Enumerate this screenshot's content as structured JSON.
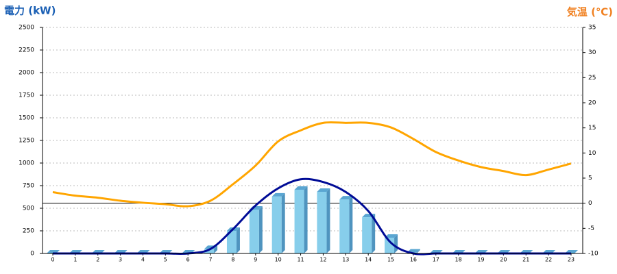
{
  "chart_data": {
    "type": "combo",
    "y_title": "電力 (kW)",
    "y2_title": "気温 (℃)",
    "categories": [
      "0",
      "1",
      "2",
      "3",
      "4",
      "5",
      "6",
      "7",
      "8",
      "9",
      "10",
      "11",
      "12",
      "13",
      "14",
      "15",
      "16",
      "17",
      "18",
      "19",
      "20",
      "21",
      "22",
      "23"
    ],
    "series": [
      {
        "type": "bar",
        "color": "#87ceeb",
        "values": [
          0,
          0,
          0,
          0,
          0,
          0,
          0,
          50,
          250,
          485,
          630,
          705,
          682,
          598,
          401,
          174,
          10,
          0,
          0,
          0,
          0,
          0,
          0,
          0
        ]
      },
      {
        "type": "line",
        "color": "#000b96",
        "values": [
          0,
          0,
          0,
          0,
          0,
          0,
          0,
          50,
          270,
          530,
          720,
          820,
          790,
          680,
          470,
          120,
          0,
          0,
          0,
          0,
          0,
          0,
          0,
          0
        ]
      },
      {
        "type": "line",
        "color": "#ffa500",
        "axis": "y2",
        "values": [
          2.2,
          1.5,
          1.1,
          0.5,
          0.1,
          -0.2,
          -0.6,
          0.5,
          3.8,
          7.5,
          12.3,
          14.5,
          16,
          16,
          16,
          15.1,
          12.8,
          10.2,
          8.5,
          7.2,
          6.4,
          5.6,
          6.7,
          7.9
        ]
      }
    ],
    "ylim": [
      0,
      2500
    ],
    "yticks": [
      0,
      250,
      500,
      750,
      1000,
      1250,
      1500,
      1750,
      2000,
      2250,
      2500
    ],
    "y2lim": [
      -10,
      35
    ],
    "y2ticks": [
      -10,
      -5,
      0,
      5,
      10,
      15,
      20,
      25,
      30,
      35
    ],
    "grid": true
  }
}
